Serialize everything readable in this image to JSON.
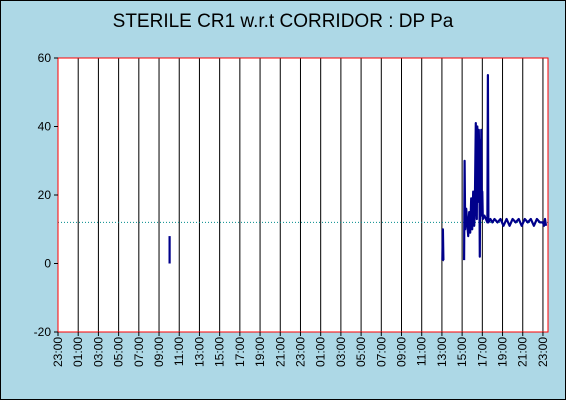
{
  "colors": {
    "background": "#add8e6",
    "plot_area": "#ffffff",
    "plot_border": "#ff0000",
    "gridline": "#000000",
    "series": "#00008b",
    "threshold": "#008b8b"
  },
  "chart_data": {
    "type": "line",
    "title": "STERILE CR1 w.r.t CORRIDOR : DP Pa",
    "xlabel": "",
    "ylabel": "",
    "x_unit": "hours since first tick",
    "xlim": [
      0,
      48.5
    ],
    "ylim": [
      -20,
      60
    ],
    "yticks": [
      -20,
      0,
      20,
      40,
      60
    ],
    "ytick_labels": [
      "-20",
      "0",
      "20",
      "40",
      "60"
    ],
    "xtick_labels": [
      "23:00",
      "01:00",
      "03:00",
      "05:00",
      "07:00",
      "09:00",
      "11:00",
      "13:00",
      "15:00",
      "17:00",
      "19:00",
      "21:00",
      "23:00",
      "01:00",
      "03:00",
      "05:00",
      "07:00",
      "09:00",
      "11:00",
      "13:00",
      "15:00",
      "17:00",
      "19:00",
      "21:00",
      "23:00"
    ],
    "grid": "vertical",
    "threshold": 12,
    "series": [
      {
        "segments": [
          [
            [
              11.05,
              0
            ],
            [
              11.05,
              8
            ]
          ],
          [
            [
              38.05,
              1
            ],
            [
              38.1,
              10
            ],
            [
              38.15,
              1
            ],
            [
              38.2,
              1
            ]
          ],
          [
            [
              40.2,
              1
            ],
            [
              40.25,
              30
            ],
            [
              40.3,
              10
            ],
            [
              40.4,
              16
            ],
            [
              40.5,
              12
            ],
            [
              40.6,
              8
            ],
            [
              40.7,
              15
            ],
            [
              40.8,
              9
            ],
            [
              40.9,
              19
            ],
            [
              41.0,
              10
            ],
            [
              41.1,
              21
            ],
            [
              41.2,
              11
            ],
            [
              41.25,
              16
            ],
            [
              41.35,
              41
            ],
            [
              41.45,
              13
            ],
            [
              41.5,
              40
            ],
            [
              41.6,
              18
            ],
            [
              41.65,
              39
            ],
            [
              41.7,
              30
            ],
            [
              41.75,
              2
            ],
            [
              41.8,
              36
            ],
            [
              41.85,
              20
            ],
            [
              41.9,
              39
            ],
            [
              41.95,
              14
            ],
            [
              42.0,
              21
            ],
            [
              42.05,
              13
            ],
            [
              42.2,
              14
            ],
            [
              42.35,
              13
            ],
            [
              42.5,
              12
            ],
            [
              42.55,
              55
            ],
            [
              42.6,
              12
            ],
            [
              42.8,
              13
            ],
            [
              43.0,
              12
            ],
            [
              43.2,
              13
            ],
            [
              43.5,
              12
            ],
            [
              43.8,
              13
            ],
            [
              44.1,
              11
            ],
            [
              44.4,
              13
            ],
            [
              44.7,
              11
            ],
            [
              45.0,
              13
            ],
            [
              45.3,
              12
            ],
            [
              45.6,
              13
            ],
            [
              45.9,
              11
            ],
            [
              46.2,
              13
            ],
            [
              46.5,
              12
            ],
            [
              46.8,
              13
            ],
            [
              47.1,
              11
            ],
            [
              47.4,
              13
            ],
            [
              47.7,
              12
            ],
            [
              48.0,
              12
            ],
            [
              48.1,
              11
            ],
            [
              48.2,
              13
            ],
            [
              48.3,
              11
            ]
          ]
        ]
      }
    ]
  }
}
